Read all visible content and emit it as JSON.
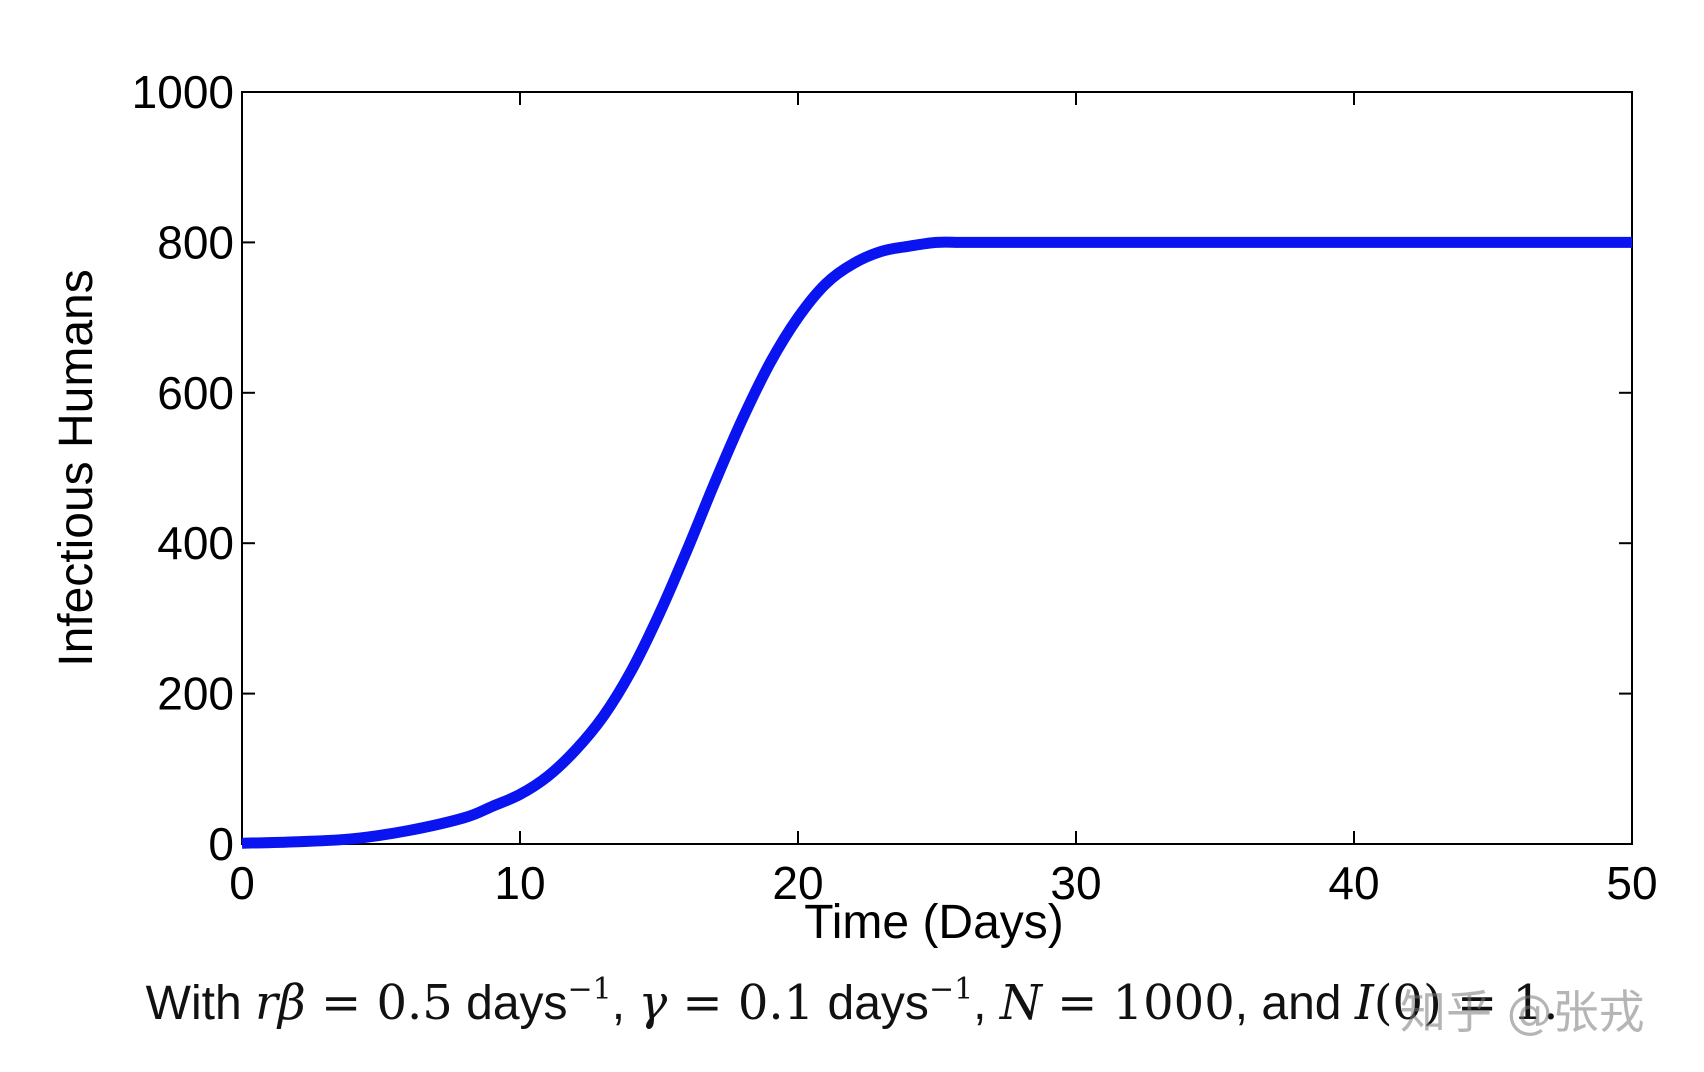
{
  "chart_data": {
    "type": "line",
    "title": "",
    "xlabel": "Time (Days)",
    "ylabel": "Infectious Humans",
    "xlim": [
      0,
      50
    ],
    "ylim": [
      0,
      1000
    ],
    "xticks": [
      0,
      10,
      20,
      30,
      40,
      50
    ],
    "yticks": [
      0,
      200,
      400,
      600,
      800,
      1000
    ],
    "grid": false,
    "series": [
      {
        "color": "#0a14f0",
        "x": [
          0,
          2,
          4,
          6,
          8,
          9,
          10,
          11,
          12,
          13,
          14,
          15,
          16,
          17,
          18,
          19,
          20,
          21,
          22,
          23,
          24,
          25,
          26,
          28,
          30,
          35,
          40,
          45,
          50
        ],
        "y": [
          1,
          3,
          7,
          18,
          35,
          50,
          66,
          90,
          125,
          170,
          230,
          305,
          390,
          480,
          565,
          640,
          700,
          745,
          772,
          788,
          795,
          800,
          800,
          800,
          800,
          800,
          800,
          800,
          800
        ]
      }
    ]
  },
  "caption": {
    "prefix": "With ",
    "sym_rbeta": "rβ",
    "eq1": " = 0.5",
    "days1": " days",
    "exp1": "−1",
    "sep1": ", ",
    "sym_gamma": "γ",
    "eq2": " = 0.1",
    "days2": " days",
    "exp2": "−1",
    "sep2": ", ",
    "sym_N": "N",
    "eq3": " = 1000",
    "and": ", and ",
    "sym_I0": "I",
    "tail": "(0) = 1."
  },
  "watermark": "知乎 @张戎"
}
